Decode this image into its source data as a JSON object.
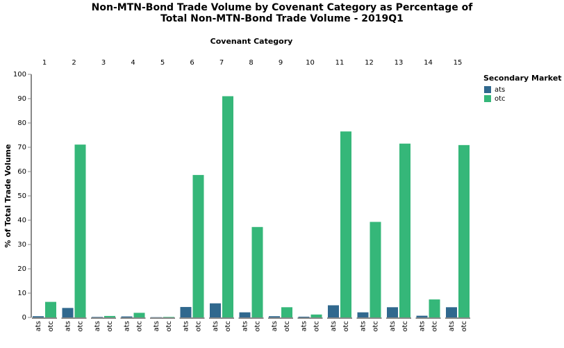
{
  "chart_data": {
    "type": "bar",
    "title": [
      "Non-MTN-Bond Trade Volume by Covenant Category as Percentage of",
      "Total Non-MTN-Bond Trade Volume - 2019Q1"
    ],
    "facet_label": "Covenant Category",
    "categories": [
      "1",
      "2",
      "3",
      "4",
      "5",
      "6",
      "7",
      "8",
      "9",
      "10",
      "11",
      "12",
      "13",
      "14",
      "15"
    ],
    "series": [
      {
        "name": "ats",
        "color": "#30688e",
        "values": [
          0.5,
          3.9,
          0.2,
          0.4,
          0.1,
          4.3,
          5.8,
          2.1,
          0.5,
          0.3,
          5.0,
          2.1,
          4.2,
          0.7,
          4.2
        ]
      },
      {
        "name": "otc",
        "color": "#35b779",
        "values": [
          6.4,
          71.1,
          0.6,
          1.9,
          0.2,
          58.6,
          91.0,
          37.2,
          4.2,
          1.2,
          76.5,
          39.3,
          71.5,
          7.4,
          70.9
        ]
      }
    ],
    "y_label": "% of Total Trade Volume",
    "ylim": [
      0,
      100
    ],
    "yticks": [
      0,
      10,
      20,
      30,
      40,
      50,
      60,
      70,
      80,
      90,
      100
    ],
    "legend_title": "Secondary Market",
    "legend_position": "right"
  }
}
